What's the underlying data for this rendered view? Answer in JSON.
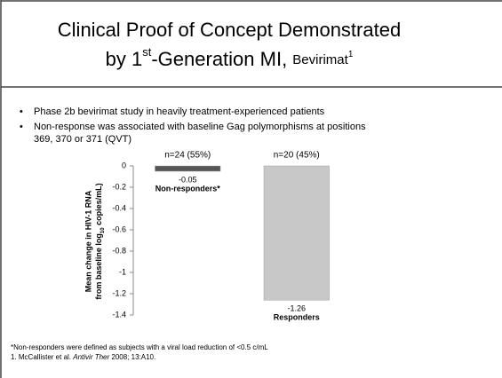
{
  "slide": {
    "title_line1": "Clinical Proof of Concept Demonstrated",
    "title_line2": [
      "by 1",
      "st",
      "-Generation MI, ",
      "Bevirimat",
      "1"
    ],
    "bullets": [
      "Phase 2b bevirimat study in heavily treatment-experienced patients",
      "Non-response was associated with baseline Gag polymorphisms at positions",
      "369, 370 or 371 (QVT)"
    ],
    "footnote1": "*Non-responders were defined as subjects with a viral load reduction of <0.5 c/mL",
    "footnote2": [
      "1. McCallister et al. ",
      "Antivir Ther",
      " 2008; 13:A10."
    ]
  },
  "chart_data": {
    "type": "bar",
    "y_label": [
      "Mean change in HIV-1 RNA",
      "from baseline log",
      "10",
      " copies/mL)"
    ],
    "categories": [
      "Non-responders*",
      "Responders"
    ],
    "annotations": [
      "n=24 (55%)",
      "n=20 (45%)"
    ],
    "values": [
      -0.05,
      -1.26
    ],
    "value_labels": [
      "-0.05",
      "-1.26"
    ],
    "colors": [
      "#555555",
      "#c8c8c8"
    ],
    "ylim": [
      -1.4,
      0
    ],
    "yticks": [
      0,
      -0.2,
      -0.4,
      -0.6,
      -0.8,
      -1,
      -1.2,
      -1.4
    ]
  }
}
